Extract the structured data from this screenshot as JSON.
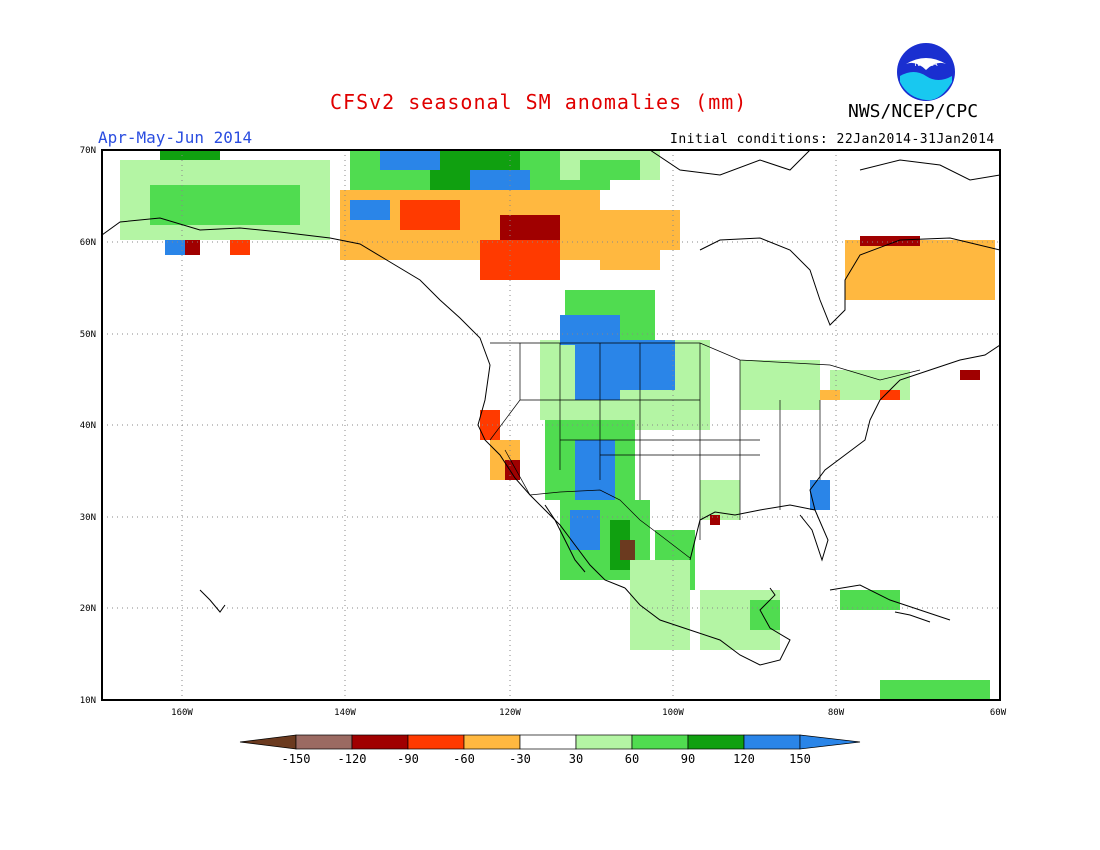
{
  "header": {
    "title": "CFSv2 seasonal SM anomalies (mm)",
    "agency": "NWS/NCEP/CPC",
    "period": "Apr-May-Jun 2014",
    "initial_conditions": "Initial conditions: 22Jan2014-31Jan2014",
    "logo_text": "NOAA"
  },
  "map": {
    "lon_range": [
      -172,
      -60
    ],
    "lat_range": [
      10,
      70
    ],
    "lat_labels": [
      "10N",
      "20N",
      "30N",
      "40N",
      "50N",
      "60N",
      "70N"
    ],
    "lon_labels": [
      "160W",
      "140W",
      "120W",
      "100W",
      "80W",
      "60W"
    ]
  },
  "colorbar": {
    "labels": [
      "-150",
      "-120",
      "-90",
      "-60",
      "-30",
      "30",
      "60",
      "90",
      "120",
      "150"
    ],
    "colors": [
      "#6b3a1f",
      "#9b6a62",
      "#a00000",
      "#ff3a00",
      "#ffb840",
      "#ffffff",
      "#b4f5a4",
      "#50dc50",
      "#10a010",
      "#2a85e8",
      "#2a85e8"
    ]
  },
  "colors": {
    "title": "#e00000",
    "period": "#2a4de0",
    "coast": "#000000",
    "grid": "#888888"
  }
}
